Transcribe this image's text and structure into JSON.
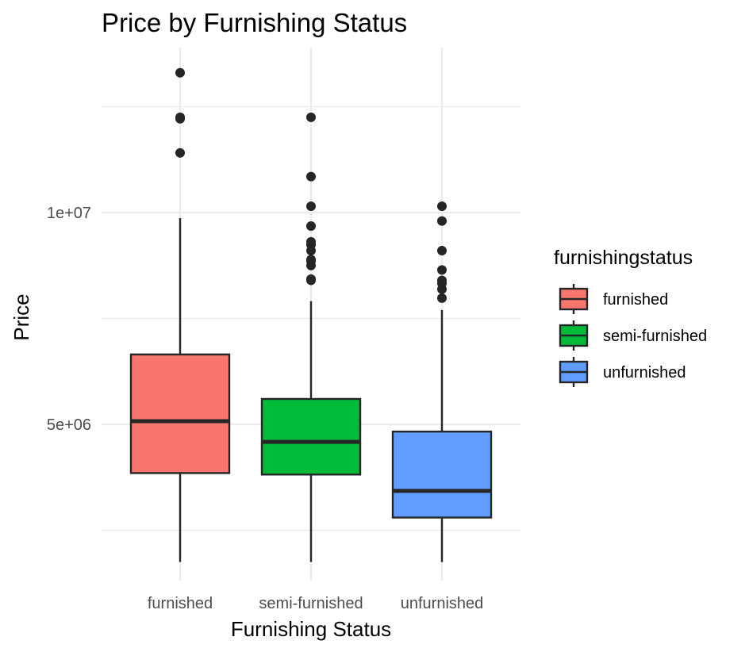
{
  "chart_data": {
    "type": "box",
    "title": "Price by Furnishing Status",
    "xlabel": "Furnishing Status",
    "ylabel": "Price",
    "ylim": [
      1000000,
      14200000
    ],
    "y_ticks": [
      {
        "value": 5000000,
        "label": "5e+06"
      },
      {
        "value": 10000000,
        "label": "1e+07"
      }
    ],
    "y_minor_gridlines": [
      2500000,
      7500000,
      12500000
    ],
    "grid": true,
    "legend": {
      "title": "furnishingstatus",
      "placement": "right"
    },
    "categories": [
      "furnished",
      "semi-furnished",
      "unfurnished"
    ],
    "series": [
      {
        "name": "furnished",
        "color": "#F8766D",
        "lower_whisker": 1750000,
        "q1": 3850000,
        "median": 5075000,
        "q3": 6650000,
        "upper_whisker": 9870000,
        "outliers": [
          13300000,
          12250000,
          12215000,
          11410000
        ]
      },
      {
        "name": "semi-furnished",
        "color": "#00BA38",
        "lower_whisker": 1750000,
        "q1": 3815000,
        "median": 4585000,
        "q3": 5600000,
        "upper_whisker": 7910000,
        "outliers": [
          12250000,
          10850000,
          10150000,
          9681000,
          9310000,
          9240000,
          9100000,
          8890000,
          8855000,
          8750000,
          8430000,
          8400000
        ]
      },
      {
        "name": "unfurnished",
        "color": "#619CFF",
        "lower_whisker": 1750000,
        "q1": 2800000,
        "median": 3430000,
        "q3": 4830000,
        "upper_whisker": 7700000,
        "outliers": [
          10150000,
          9800000,
          9100000,
          8645000,
          8400000,
          8330000,
          8190000,
          7980000
        ]
      }
    ]
  }
}
